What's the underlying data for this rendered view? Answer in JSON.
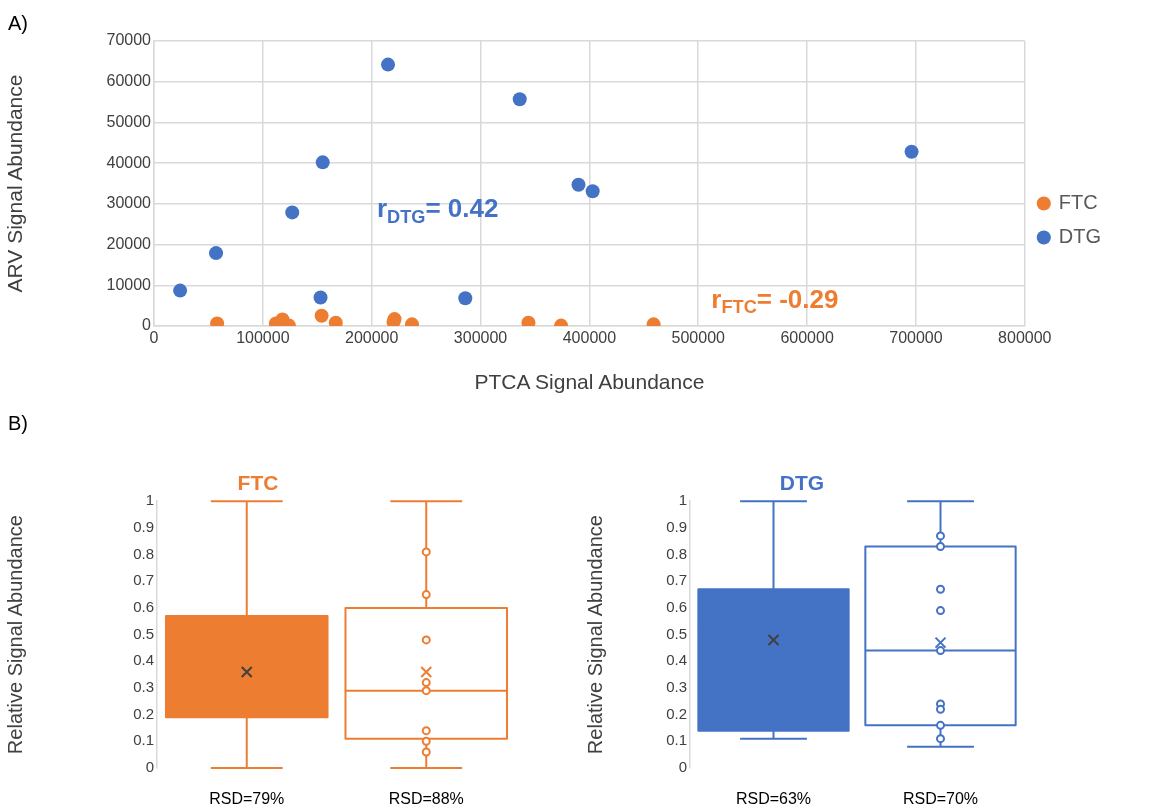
{
  "chart_data": [
    {
      "type": "scatter",
      "xlabel": "PTCA Signal Abundance",
      "ylabel": "ARV Signal Abundance",
      "xlim": [
        0,
        800000
      ],
      "xticks": [
        0,
        100000,
        200000,
        300000,
        400000,
        500000,
        600000,
        700000,
        800000
      ],
      "ylim": [
        0,
        70000
      ],
      "yticks": [
        0,
        10000,
        20000,
        30000,
        40000,
        50000,
        60000,
        70000
      ],
      "grid": true,
      "legend": "right",
      "marker": "circle",
      "annotations": [
        "A)",
        "r$_{FTC}$= -0.29",
        "r$_{DTG}$= 0.42"
      ],
      "series": [
        {
          "name": "FTC",
          "color": "#ed7d31",
          "x": [
            58000,
            112000,
            118000,
            124000,
            154000,
            167000,
            221000,
            220000,
            237000,
            344000,
            374000,
            459000
          ],
          "values": [
            600,
            600,
            1600,
            100,
            2500,
            800,
            1700,
            1000,
            400,
            800,
            100,
            400
          ]
        },
        {
          "name": "DTG",
          "color": "#4472c4",
          "x": [
            24000,
            57000,
            127000,
            155000,
            153000,
            215000,
            286000,
            336000,
            390000,
            403000,
            696000
          ],
          "values": [
            8700,
            17900,
            27900,
            40200,
            7000,
            64200,
            6800,
            55700,
            34700,
            33100,
            42800
          ]
        }
      ]
    },
    {
      "type": "box",
      "title": "FTC",
      "color": "#ed7d31",
      "colors": [
        "#ed7d31",
        "#ffffff"
      ],
      "categories": [
        "RSD=79%",
        "RSD=88%"
      ],
      "ylabel": "Relative Signal Abundance",
      "ylim": [
        0,
        1
      ],
      "yticks": [
        0,
        0.1,
        0.2,
        0.3,
        0.4,
        0.5,
        0.6,
        0.7,
        0.8,
        0.9,
        1
      ],
      "marker": "circle",
      "annotations": [
        "B)"
      ],
      "boxes": [
        {
          "low": 0,
          "q1": 0.19,
          "median": 0.28,
          "q3": 0.57,
          "high": 1,
          "mean": 0.36
        },
        {
          "low": 0,
          "q1": 0.11,
          "median": 0.29,
          "q3": 0.6,
          "high": 1,
          "mean": 0.36
        }
      ],
      "series": [
        {
          "type": "scatter",
          "color": "#ed7d31",
          "x": [
            "RSD=88%",
            "RSD=88%",
            "RSD=88%",
            "RSD=88%",
            "RSD=88%",
            "RSD=88%",
            "RSD=88%",
            "RSD=88%"
          ],
          "values": [
            0.81,
            0.65,
            0.48,
            0.32,
            0.29,
            0.14,
            0.1,
            0.06
          ]
        }
      ]
    },
    {
      "type": "box",
      "title": "DTG",
      "color": "#4472c4",
      "colors": [
        "#4472c4",
        "#ffffff"
      ],
      "categories": [
        "RSD=63%",
        "RSD=70%"
      ],
      "ylabel": "Relative Signal Abundance",
      "ylim": [
        0,
        1
      ],
      "yticks": [
        0,
        0.1,
        0.2,
        0.3,
        0.4,
        0.5,
        0.6,
        0.7,
        0.8,
        0.9,
        1
      ],
      "marker": "circle",
      "boxes": [
        {
          "low": 0.11,
          "q1": 0.14,
          "median": 0.52,
          "q3": 0.67,
          "high": 1,
          "mean": 0.48
        },
        {
          "low": 0.08,
          "q1": 0.16,
          "median": 0.44,
          "q3": 0.83,
          "high": 1,
          "mean": 0.47
        }
      ],
      "series": [
        {
          "type": "scatter",
          "color": "#4472c4",
          "x": [
            "RSD=70%",
            "RSD=70%",
            "RSD=70%",
            "RSD=70%",
            "RSD=70%",
            "RSD=70%",
            "RSD=70%",
            "RSD=70%",
            "RSD=70%"
          ],
          "values": [
            0.87,
            0.83,
            0.67,
            0.59,
            0.44,
            0.24,
            0.22,
            0.16,
            0.11
          ]
        }
      ]
    }
  ]
}
